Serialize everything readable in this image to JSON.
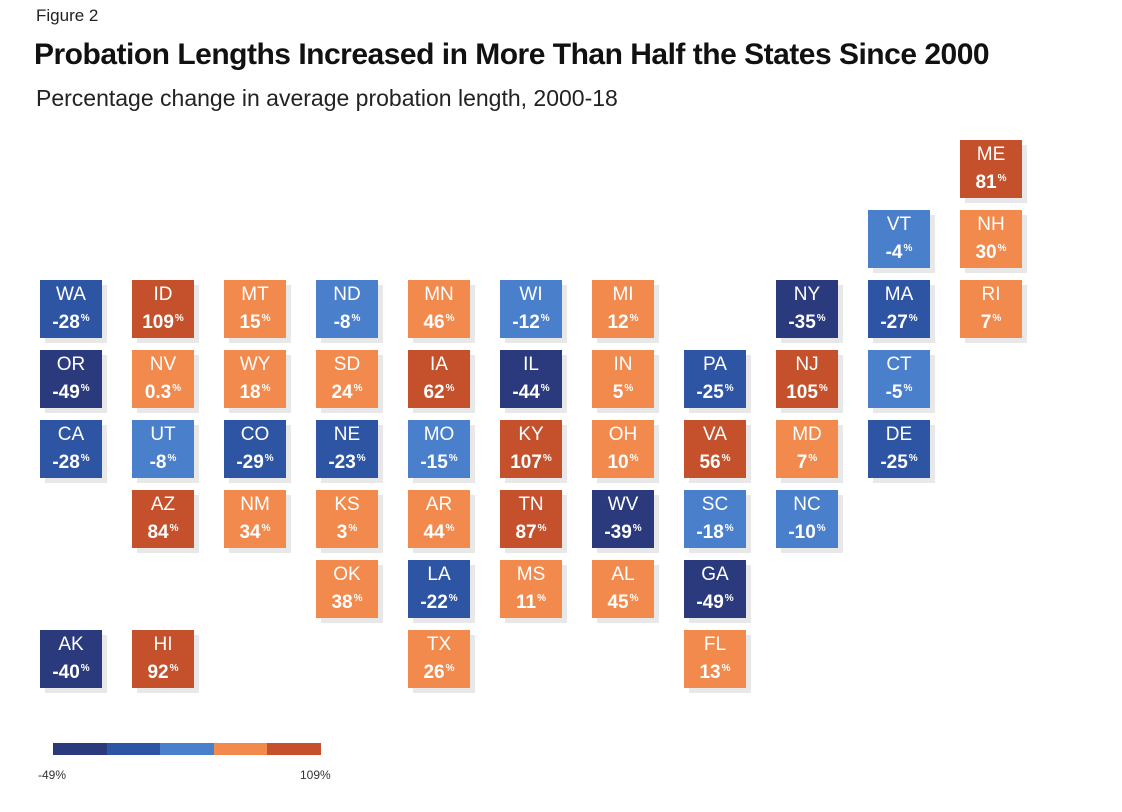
{
  "figure_label": "Figure 2",
  "title": "Probation Lengths Increased in More Than Half the States Since 2000",
  "subtitle": "Percentage change in average probation length, 2000-18",
  "colors": {
    "c1": "#2b3a7c",
    "c2": "#2e55a3",
    "c3": "#4a7fcc",
    "c4": "#f28a4e",
    "c5": "#c4512b"
  },
  "legend": {
    "min_label": "-49%",
    "max_label": "109%",
    "bins": [
      "c1",
      "c2",
      "c3",
      "c4",
      "c5"
    ]
  },
  "map_data": {
    "type": "tile-grid-map",
    "unit": "%",
    "states": [
      {
        "abbr": "ME",
        "value": "81",
        "bin": "c5",
        "row": 0,
        "col": 10
      },
      {
        "abbr": "VT",
        "value": "-4",
        "bin": "c3",
        "row": 1,
        "col": 9
      },
      {
        "abbr": "NH",
        "value": "30",
        "bin": "c4",
        "row": 1,
        "col": 10
      },
      {
        "abbr": "WA",
        "value": "-28",
        "bin": "c2",
        "row": 2,
        "col": 0
      },
      {
        "abbr": "ID",
        "value": "109",
        "bin": "c5",
        "row": 2,
        "col": 1
      },
      {
        "abbr": "MT",
        "value": "15",
        "bin": "c4",
        "row": 2,
        "col": 2
      },
      {
        "abbr": "ND",
        "value": "-8",
        "bin": "c3",
        "row": 2,
        "col": 3
      },
      {
        "abbr": "MN",
        "value": "46",
        "bin": "c4",
        "row": 2,
        "col": 4
      },
      {
        "abbr": "WI",
        "value": "-12",
        "bin": "c3",
        "row": 2,
        "col": 5
      },
      {
        "abbr": "MI",
        "value": "12",
        "bin": "c4",
        "row": 2,
        "col": 6
      },
      {
        "abbr": "NY",
        "value": "-35",
        "bin": "c1",
        "row": 2,
        "col": 8
      },
      {
        "abbr": "MA",
        "value": "-27",
        "bin": "c2",
        "row": 2,
        "col": 9
      },
      {
        "abbr": "RI",
        "value": "7",
        "bin": "c4",
        "row": 2,
        "col": 10
      },
      {
        "abbr": "OR",
        "value": "-49",
        "bin": "c1",
        "row": 3,
        "col": 0
      },
      {
        "abbr": "NV",
        "value": "0.3",
        "bin": "c4",
        "row": 3,
        "col": 1
      },
      {
        "abbr": "WY",
        "value": "18",
        "bin": "c4",
        "row": 3,
        "col": 2
      },
      {
        "abbr": "SD",
        "value": "24",
        "bin": "c4",
        "row": 3,
        "col": 3
      },
      {
        "abbr": "IA",
        "value": "62",
        "bin": "c5",
        "row": 3,
        "col": 4
      },
      {
        "abbr": "IL",
        "value": "-44",
        "bin": "c1",
        "row": 3,
        "col": 5
      },
      {
        "abbr": "IN",
        "value": "5",
        "bin": "c4",
        "row": 3,
        "col": 6
      },
      {
        "abbr": "PA",
        "value": "-25",
        "bin": "c2",
        "row": 3,
        "col": 7
      },
      {
        "abbr": "NJ",
        "value": "105",
        "bin": "c5",
        "row": 3,
        "col": 8
      },
      {
        "abbr": "CT",
        "value": "-5",
        "bin": "c3",
        "row": 3,
        "col": 9
      },
      {
        "abbr": "CA",
        "value": "-28",
        "bin": "c2",
        "row": 4,
        "col": 0
      },
      {
        "abbr": "UT",
        "value": "-8",
        "bin": "c3",
        "row": 4,
        "col": 1
      },
      {
        "abbr": "CO",
        "value": "-29",
        "bin": "c2",
        "row": 4,
        "col": 2
      },
      {
        "abbr": "NE",
        "value": "-23",
        "bin": "c2",
        "row": 4,
        "col": 3
      },
      {
        "abbr": "MO",
        "value": "-15",
        "bin": "c3",
        "row": 4,
        "col": 4
      },
      {
        "abbr": "KY",
        "value": "107",
        "bin": "c5",
        "row": 4,
        "col": 5
      },
      {
        "abbr": "OH",
        "value": "10",
        "bin": "c4",
        "row": 4,
        "col": 6
      },
      {
        "abbr": "VA",
        "value": "56",
        "bin": "c5",
        "row": 4,
        "col": 7
      },
      {
        "abbr": "MD",
        "value": "7",
        "bin": "c4",
        "row": 4,
        "col": 8
      },
      {
        "abbr": "DE",
        "value": "-25",
        "bin": "c2",
        "row": 4,
        "col": 9
      },
      {
        "abbr": "AZ",
        "value": "84",
        "bin": "c5",
        "row": 5,
        "col": 1
      },
      {
        "abbr": "NM",
        "value": "34",
        "bin": "c4",
        "row": 5,
        "col": 2
      },
      {
        "abbr": "KS",
        "value": "3",
        "bin": "c4",
        "row": 5,
        "col": 3
      },
      {
        "abbr": "AR",
        "value": "44",
        "bin": "c4",
        "row": 5,
        "col": 4
      },
      {
        "abbr": "TN",
        "value": "87",
        "bin": "c5",
        "row": 5,
        "col": 5
      },
      {
        "abbr": "WV",
        "value": "-39",
        "bin": "c1",
        "row": 5,
        "col": 6
      },
      {
        "abbr": "SC",
        "value": "-18",
        "bin": "c3",
        "row": 5,
        "col": 7
      },
      {
        "abbr": "NC",
        "value": "-10",
        "bin": "c3",
        "row": 5,
        "col": 8
      },
      {
        "abbr": "OK",
        "value": "38",
        "bin": "c4",
        "row": 6,
        "col": 3
      },
      {
        "abbr": "LA",
        "value": "-22",
        "bin": "c2",
        "row": 6,
        "col": 4
      },
      {
        "abbr": "MS",
        "value": "11",
        "bin": "c4",
        "row": 6,
        "col": 5
      },
      {
        "abbr": "AL",
        "value": "45",
        "bin": "c4",
        "row": 6,
        "col": 6
      },
      {
        "abbr": "GA",
        "value": "-49",
        "bin": "c1",
        "row": 6,
        "col": 7
      },
      {
        "abbr": "AK",
        "value": "-40",
        "bin": "c1",
        "row": 7,
        "col": 0
      },
      {
        "abbr": "HI",
        "value": "92",
        "bin": "c5",
        "row": 7,
        "col": 1
      },
      {
        "abbr": "TX",
        "value": "26",
        "bin": "c4",
        "row": 7,
        "col": 4
      },
      {
        "abbr": "FL",
        "value": "13",
        "bin": "c4",
        "row": 7,
        "col": 7
      }
    ]
  }
}
